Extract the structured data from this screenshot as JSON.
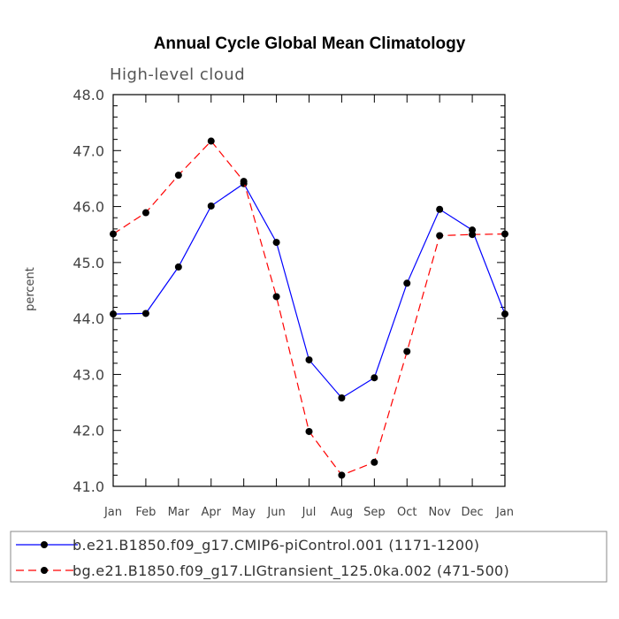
{
  "chart_data": {
    "type": "line",
    "title": "Annual Cycle Global Mean Climatology",
    "subtitle": "High-level cloud",
    "xlabel": "",
    "ylabel": "percent",
    "categories": [
      "Jan",
      "Feb",
      "Mar",
      "Apr",
      "May",
      "Jun",
      "Jul",
      "Aug",
      "Sep",
      "Oct",
      "Nov",
      "Dec",
      "Jan"
    ],
    "ylim": [
      41.0,
      48.0
    ],
    "yticks": [
      "41.0",
      "42.0",
      "43.0",
      "44.0",
      "45.0",
      "46.0",
      "47.0",
      "48.0"
    ],
    "grid": false,
    "legend_position": "bottom",
    "series": [
      {
        "name": "b.e21.B1850.f09_g17.CMIP6-piControl.001 (1171-1200)",
        "color": "#0000ff",
        "style": "solid",
        "values": [
          44.08,
          44.09,
          44.92,
          46.01,
          46.41,
          45.36,
          43.26,
          42.58,
          42.94,
          44.63,
          45.95,
          45.58,
          44.08
        ]
      },
      {
        "name": "bg.e21.B1850.f09_g17.LIGtransient_125.0ka.002 (471-500)",
        "color": "#ff0000",
        "style": "dashed",
        "values": [
          45.51,
          45.89,
          46.56,
          47.17,
          46.45,
          44.39,
          41.98,
          41.2,
          41.43,
          43.41,
          45.48,
          45.5,
          45.51
        ]
      }
    ]
  }
}
